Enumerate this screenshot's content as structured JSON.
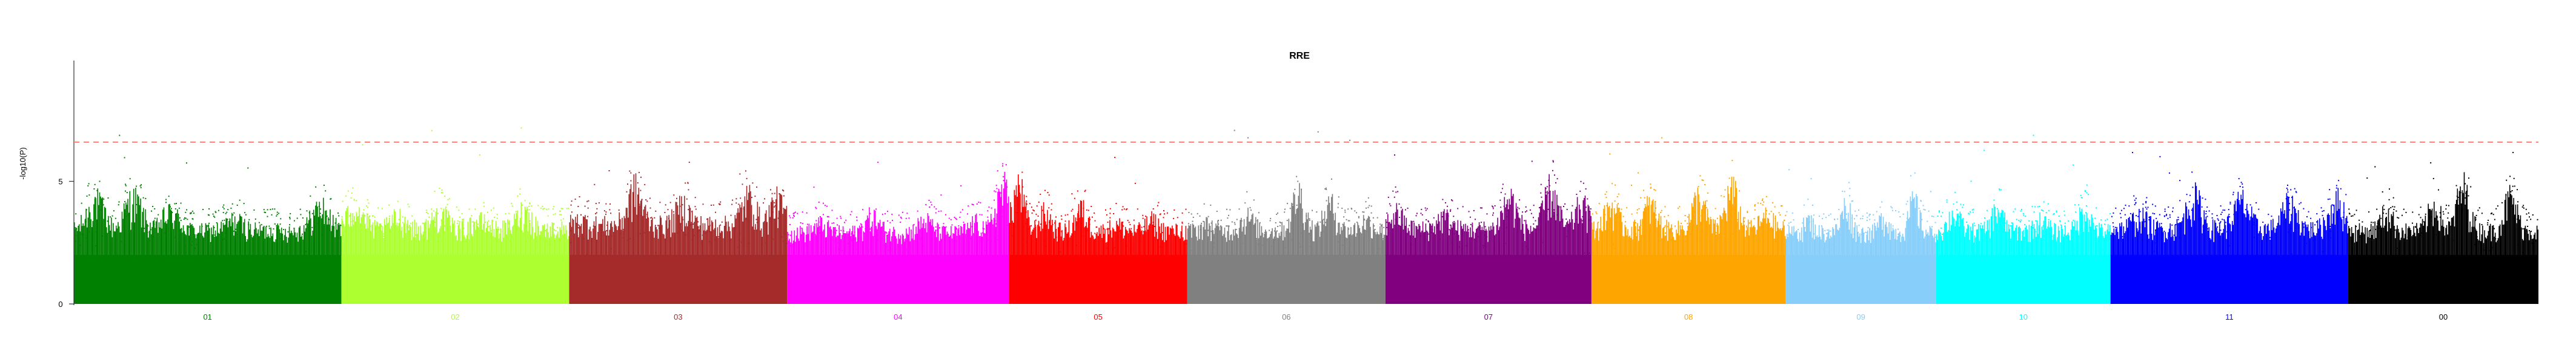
{
  "chart_data": {
    "type": "scatter",
    "title": "RRE",
    "xlabel": "",
    "ylabel": "-log10(P)",
    "ylim": [
      0,
      8
    ],
    "yticks": [
      0,
      5
    ],
    "threshold": {
      "value": 6.6,
      "color": "#f08070",
      "style": "dashed"
    },
    "grid": false,
    "legend": "none",
    "baseline": 2,
    "chromosomes": [
      {
        "label": "01",
        "color": "#008000",
        "span": [
          0,
          1.35
        ],
        "mean_top": 3.3,
        "max_peak": 6.9,
        "peaks": [
          [
            0.08,
            4.8
          ],
          [
            0.22,
            4.9
          ],
          [
            0.36,
            4.2
          ],
          [
            0.6,
            3.8
          ],
          [
            0.92,
            4.5
          ],
          [
            1.05,
            3.6
          ],
          [
            1.3,
            4.6
          ]
        ]
      },
      {
        "label": "02",
        "color": "#adff2f",
        "span": [
          1.35,
          2.5
        ],
        "mean_top": 3.4,
        "max_peak": 7.2,
        "peaks": [
          [
            0.06,
            4.6
          ],
          [
            0.25,
            4.0
          ],
          [
            0.43,
            4.2
          ],
          [
            0.6,
            3.8
          ],
          [
            0.8,
            4.3
          ]
        ]
      },
      {
        "label": "03",
        "color": "#a52a2a",
        "span": [
          2.5,
          3.6
        ],
        "mean_top": 3.6,
        "max_peak": 5.8,
        "peaks": [
          [
            0.05,
            3.8
          ],
          [
            0.3,
            5.4
          ],
          [
            0.52,
            4.6
          ],
          [
            0.82,
            5.0
          ],
          [
            0.95,
            4.8
          ]
        ]
      },
      {
        "label": "04",
        "color": "#ff00ff",
        "span": [
          3.6,
          4.72
        ],
        "mean_top": 3.2,
        "max_peak": 5.8,
        "peaks": [
          [
            0.15,
            3.6
          ],
          [
            0.38,
            4.0
          ],
          [
            0.62,
            3.8
          ],
          [
            0.85,
            3.7
          ],
          [
            0.97,
            5.5
          ]
        ]
      },
      {
        "label": "05",
        "color": "#ff0000",
        "span": [
          4.72,
          5.62
        ],
        "mean_top": 3.3,
        "max_peak": 6.0,
        "peaks": [
          [
            0.05,
            5.6
          ],
          [
            0.2,
            4.2
          ],
          [
            0.4,
            4.4
          ],
          [
            0.6,
            3.6
          ],
          [
            0.8,
            3.8
          ]
        ]
      },
      {
        "label": "06",
        "color": "#808080",
        "span": [
          5.62,
          6.62
        ],
        "mean_top": 3.3,
        "max_peak": 7.1,
        "peaks": [
          [
            0.1,
            3.6
          ],
          [
            0.3,
            4.0
          ],
          [
            0.56,
            5.2
          ],
          [
            0.72,
            4.6
          ],
          [
            0.9,
            3.8
          ]
        ]
      },
      {
        "label": "07",
        "color": "#800080",
        "span": [
          6.62,
          7.66
        ],
        "mean_top": 3.4,
        "max_peak": 6.1,
        "peaks": [
          [
            0.05,
            4.2
          ],
          [
            0.28,
            4.0
          ],
          [
            0.6,
            5.0
          ],
          [
            0.8,
            5.4
          ],
          [
            0.95,
            4.6
          ]
        ]
      },
      {
        "label": "08",
        "color": "#ffa500",
        "span": [
          7.66,
          8.64
        ],
        "mean_top": 3.4,
        "max_peak": 6.8,
        "peaks": [
          [
            0.1,
            4.6
          ],
          [
            0.3,
            4.6
          ],
          [
            0.55,
            5.0
          ],
          [
            0.72,
            5.4
          ],
          [
            0.9,
            4.0
          ]
        ]
      },
      {
        "label": "09",
        "color": "#87cefa",
        "span": [
          8.64,
          9.4
        ],
        "mean_top": 3.2,
        "max_peak": 5.5,
        "peaks": [
          [
            0.15,
            3.8
          ],
          [
            0.4,
            4.6
          ],
          [
            0.65,
            4.0
          ],
          [
            0.85,
            4.8
          ]
        ]
      },
      {
        "label": "10",
        "color": "#00ffff",
        "span": [
          9.4,
          10.28
        ],
        "mean_top": 3.3,
        "max_peak": 6.9,
        "peaks": [
          [
            0.1,
            4.2
          ],
          [
            0.35,
            4.4
          ],
          [
            0.6,
            3.8
          ],
          [
            0.85,
            4.4
          ]
        ]
      },
      {
        "label": "11",
        "color": "#0000ff",
        "span": [
          10.28,
          11.48
        ],
        "mean_top": 3.4,
        "max_peak": 6.2,
        "peaks": [
          [
            0.12,
            4.0
          ],
          [
            0.35,
            5.0
          ],
          [
            0.55,
            4.8
          ],
          [
            0.75,
            4.6
          ],
          [
            0.95,
            4.8
          ]
        ]
      },
      {
        "label": "00",
        "color": "#000000",
        "span": [
          11.48,
          12.44
        ],
        "mean_top": 3.3,
        "max_peak": 6.2,
        "peaks": [
          [
            0.2,
            4.2
          ],
          [
            0.45,
            4.6
          ],
          [
            0.6,
            5.5
          ],
          [
            0.85,
            5.0
          ]
        ]
      }
    ]
  }
}
